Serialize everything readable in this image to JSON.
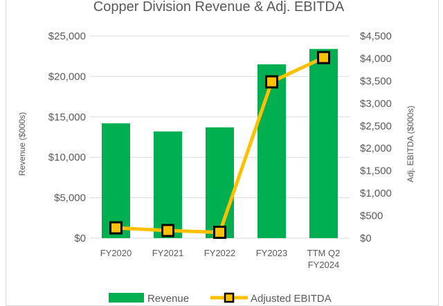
{
  "chart_data": {
    "type": "bar",
    "title": "Copper Division Revenue & Adj. EBITDA",
    "categories": [
      [
        "FY2020"
      ],
      [
        "FY2021"
      ],
      [
        "FY2022"
      ],
      [
        "FY2023"
      ],
      [
        "TTM Q2",
        "FY2024"
      ]
    ],
    "series": [
      {
        "name": "Revenue",
        "type": "bar",
        "axis": "left",
        "color": "#00b050",
        "values": [
          14200,
          13200,
          13700,
          21500,
          23400
        ]
      },
      {
        "name": "Adjusted EBITDA",
        "type": "line",
        "axis": "right",
        "color": "#ffc000",
        "marker": "square",
        "marker_fill": "#ffc000",
        "marker_edge": "#000000",
        "values": [
          230,
          170,
          130,
          3480,
          4020
        ]
      }
    ],
    "ylabel": "Revenue ($000s)",
    "y2label": "Adj. EBITDA ($000s)",
    "ylim": [
      0,
      25000
    ],
    "y2lim": [
      0,
      4500
    ],
    "yticks": [
      "$0",
      "$5,000",
      "$10,000",
      "$15,000",
      "$20,000",
      "$25,000"
    ],
    "y2ticks": [
      "$0",
      "$500",
      "$1,000",
      "$1,500",
      "$2,000",
      "$2,500",
      "$3,000",
      "$3,500",
      "$4,000",
      "$4,500"
    ],
    "grid": true,
    "grid_color": "#d9d9d9",
    "legend_position": "bottom"
  }
}
